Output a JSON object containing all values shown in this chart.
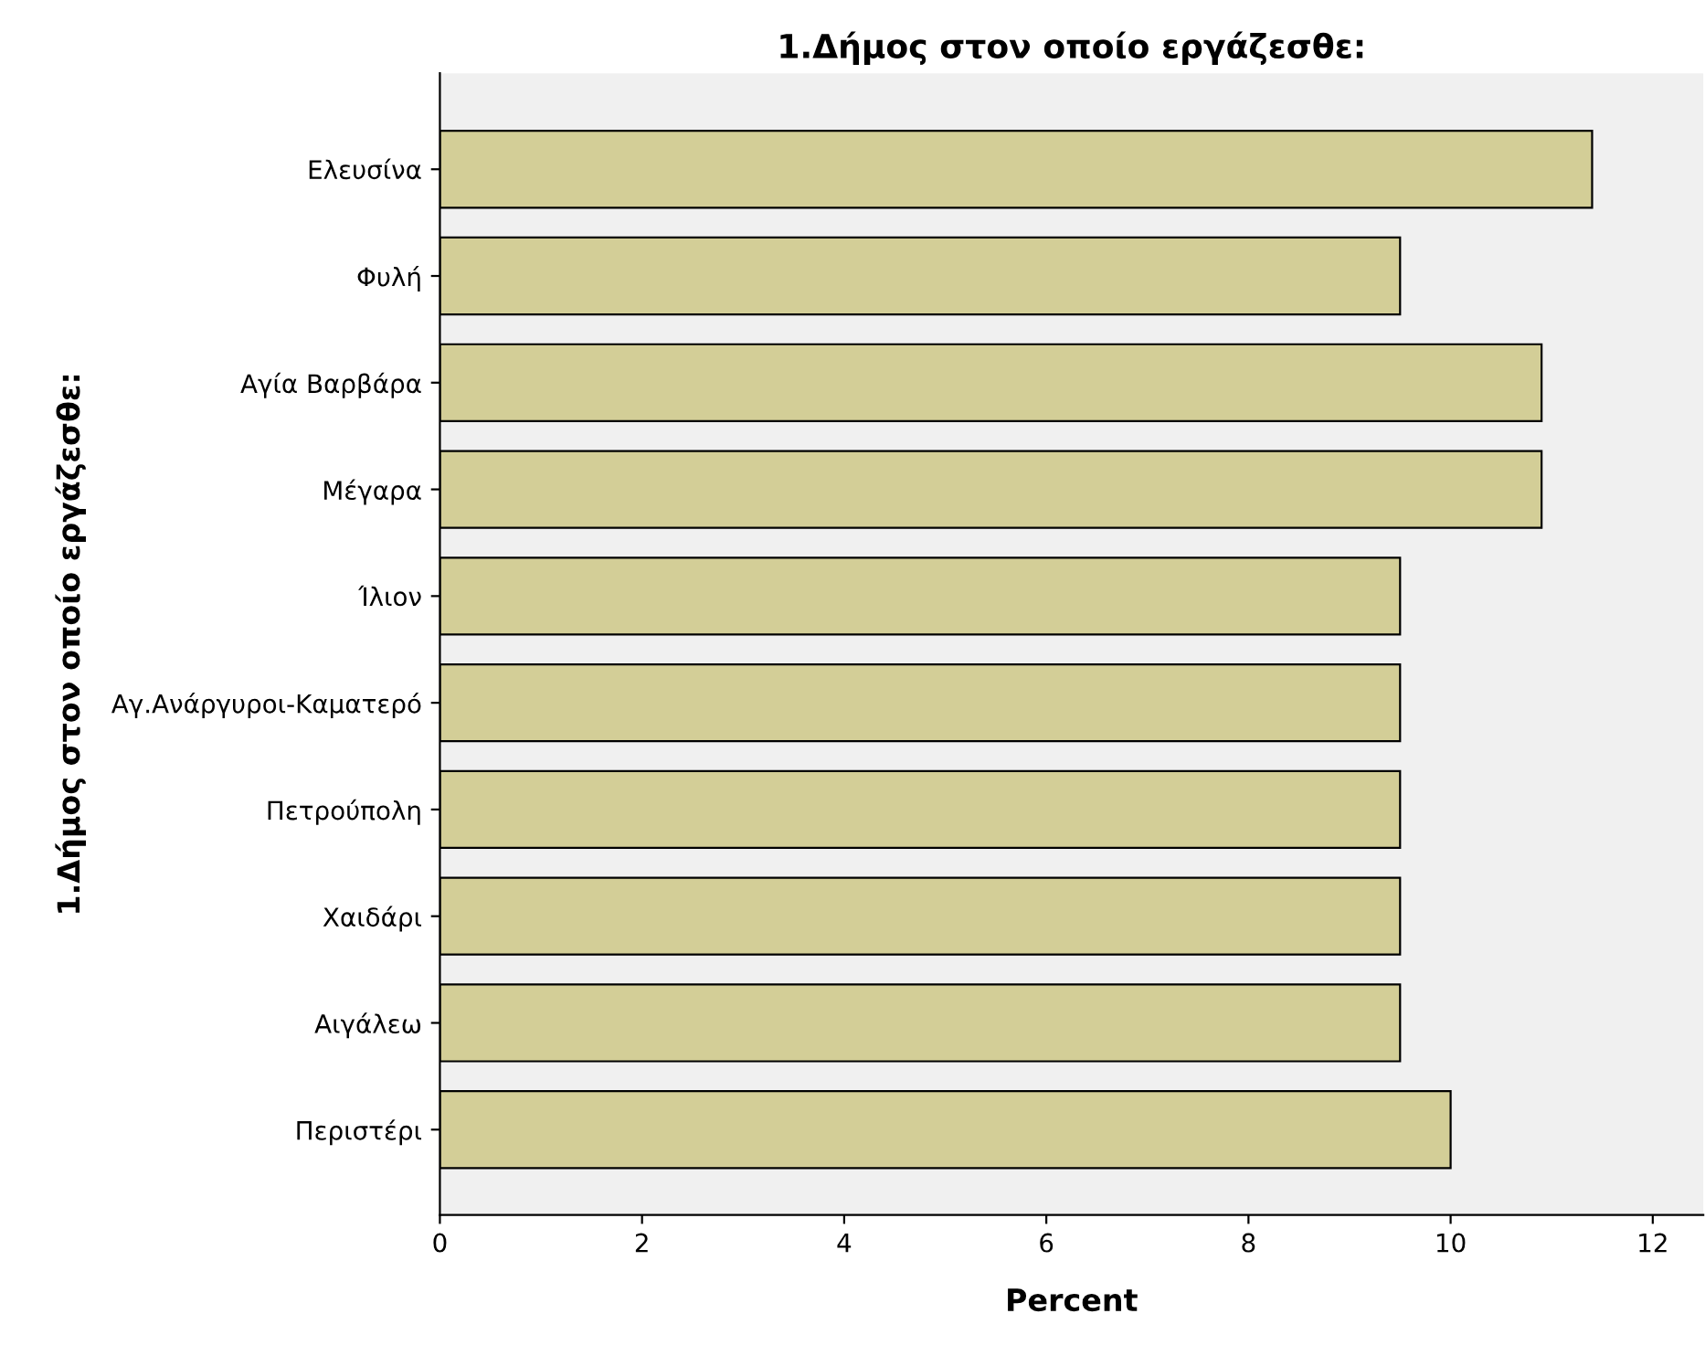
{
  "chart_data": {
    "type": "bar",
    "orientation": "horizontal",
    "title": "1.Δήμος στον οποίο εργάζεσθε:",
    "xlabel": "Percent",
    "ylabel": "1.Δήμος στον οποίο εργάζεσθε:",
    "categories": [
      "Ελευσίνα",
      "Φυλή",
      "Αγία Βαρβάρα",
      "Μέγαρα",
      "Ίλιον",
      "Αγ.Ανάργυροι-Καματερό",
      "Πετρούπολη",
      "Χαιδάρι",
      "Αιγάλεω",
      "Περιστέρι"
    ],
    "values": [
      11.4,
      9.5,
      10.9,
      10.9,
      9.5,
      9.5,
      9.5,
      9.5,
      9.5,
      10.0
    ],
    "color": "#d3ce97",
    "xlim": [
      0,
      12.5
    ],
    "xticks": [
      0,
      2,
      4,
      6,
      8,
      10,
      12
    ],
    "grid": false,
    "legend": false
  }
}
